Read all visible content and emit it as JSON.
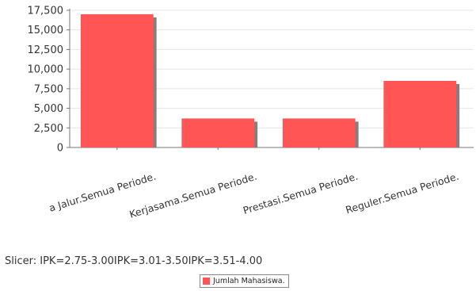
{
  "chart_data": {
    "type": "bar",
    "categories": [
      "Semua Jalur.Semua Periode.",
      "Kerjasama.Semua Periode.",
      "Prestasi.Semua Periode.",
      "Reguler.Semua Periode."
    ],
    "category_display": [
      "a Jalur.Semua Periode.",
      "Kerjasama.Semua Periode.",
      "Prestasi.Semua Periode.",
      "Reguler.Semua Periode."
    ],
    "series": [
      {
        "name": "Jumlah Mahasiswa.",
        "values": [
          17000,
          3700,
          3700,
          8500
        ]
      }
    ],
    "ylim": [
      0,
      17500
    ],
    "yticks": [
      0,
      2500,
      5000,
      7500,
      10000,
      12500,
      15000,
      17500
    ],
    "ytick_labels": [
      "0",
      "2,500",
      "5,000",
      "7,500",
      "10,000",
      "12,500",
      "15,000",
      "17,500"
    ],
    "bar_color": "#ff5555",
    "shadow_color": "#808080",
    "grid": true,
    "legend": "bottom-center"
  },
  "slicer": {
    "text": "Slicer: IPK=2.75-3.00IPK=3.01-3.50IPK=3.51-4.00"
  },
  "legend": {
    "label": "Jumlah Mahasiswa."
  }
}
